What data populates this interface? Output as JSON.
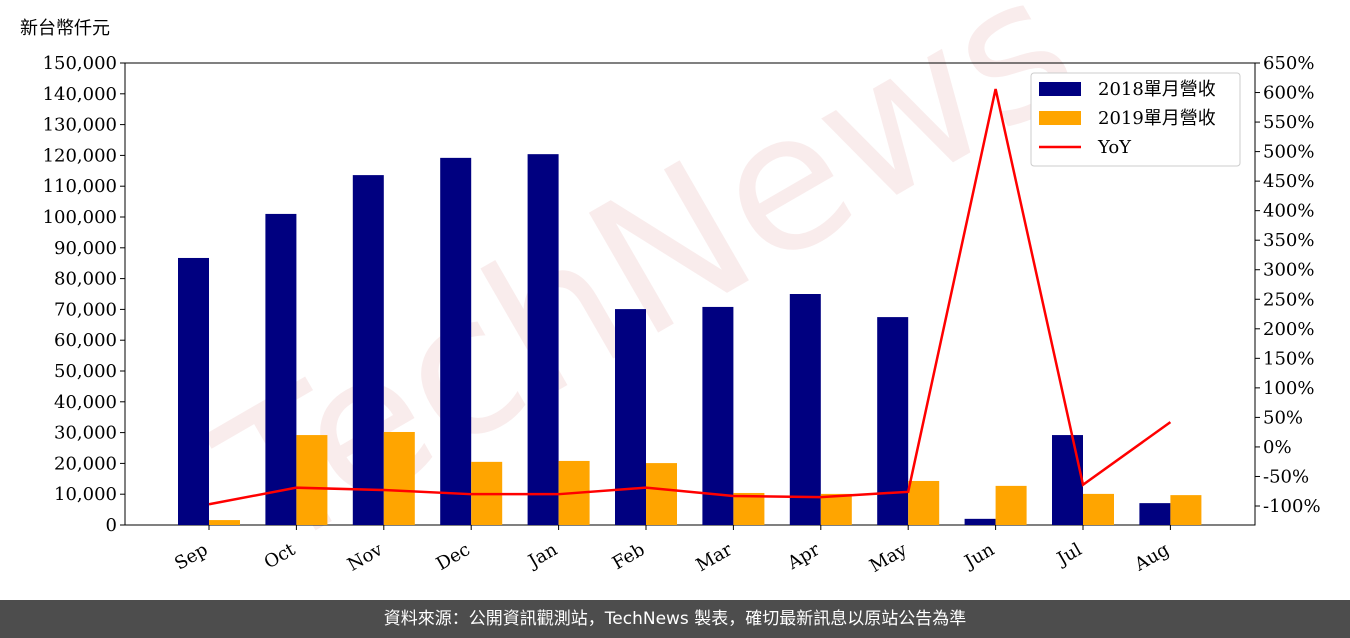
{
  "chart_data": {
    "type": "bar_line",
    "y_label": "新台幣仟元",
    "watermark": "TechNews",
    "footer": "資料來源：公開資訊觀測站，TechNews 製表，確切最新訊息以原站公告為準",
    "categories": [
      "Sep",
      "Oct",
      "Nov",
      "Dec",
      "Jan",
      "Feb",
      "Mar",
      "Apr",
      "May",
      "Jun",
      "Jul",
      "Aug"
    ],
    "series": [
      {
        "name": "2018單月營收",
        "color": "#000080",
        "kind": "bar",
        "values": [
          86700,
          101000,
          113600,
          119200,
          120400,
          70100,
          70800,
          75000,
          67500,
          2000,
          29200,
          7100
        ]
      },
      {
        "name": "2019單月營收",
        "color": "#ffa500",
        "kind": "bar",
        "values": [
          1600,
          29200,
          30200,
          20500,
          20800,
          20100,
          10400,
          10100,
          14300,
          12700,
          10100,
          9700
        ]
      },
      {
        "name": "YoY",
        "color": "#ff0000",
        "kind": "line",
        "axis": "y2",
        "values": [
          -97,
          -69,
          -73,
          -80,
          -80,
          -69,
          -83,
          -85,
          -76,
          606,
          -64,
          42
        ]
      }
    ],
    "ylim": [
      0,
      150000
    ],
    "yticks": [
      0,
      {
        "value": 10000,
        "label": "10,000"
      },
      {
        "value": 20000,
        "label": "20,000"
      },
      {
        "value": 30000,
        "label": "30,000"
      },
      {
        "value": 40000,
        "label": "40,000"
      },
      {
        "value": 50000,
        "label": "50,000"
      },
      {
        "value": 60000,
        "label": "60,000"
      },
      {
        "value": 70000,
        "label": "70,000"
      },
      {
        "value": 80000,
        "label": "80,000"
      },
      {
        "value": 90000,
        "label": "90,000"
      },
      {
        "value": 100000,
        "label": "100,000"
      },
      {
        "value": 110000,
        "label": "110,000"
      },
      {
        "value": 120000,
        "label": "120,000"
      },
      {
        "value": 130000,
        "label": "130,000"
      },
      {
        "value": 140000,
        "label": "140,000"
      },
      {
        "value": 150000,
        "label": "150,000"
      }
    ],
    "y2lim": [
      -100,
      650
    ],
    "y2ticks": [
      {
        "value": -100,
        "label": "-100%"
      },
      {
        "value": -50,
        "label": "-50%"
      },
      {
        "value": 0,
        "label": "0%"
      },
      {
        "value": 50,
        "label": "50%"
      },
      {
        "value": 100,
        "label": "100%"
      },
      {
        "value": 150,
        "label": "150%"
      },
      {
        "value": 200,
        "label": "200%"
      },
      {
        "value": 250,
        "label": "250%"
      },
      {
        "value": 300,
        "label": "300%"
      },
      {
        "value": 350,
        "label": "350%"
      },
      {
        "value": 400,
        "label": "400%"
      },
      {
        "value": 450,
        "label": "450%"
      },
      {
        "value": 500,
        "label": "500%"
      },
      {
        "value": 550,
        "label": "550%"
      },
      {
        "value": 600,
        "label": "600%"
      },
      {
        "value": 650,
        "label": "650%"
      }
    ],
    "legend": "upper right"
  }
}
